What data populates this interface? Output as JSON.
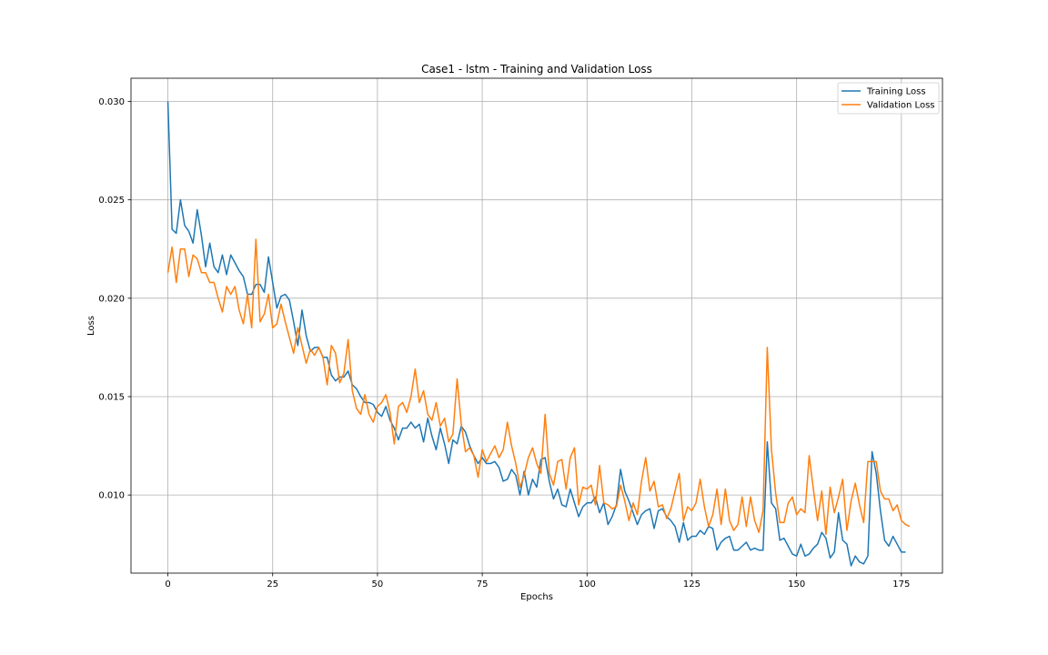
{
  "chart_data": {
    "type": "line",
    "title": "Case1 - lstm - Training and Validation Loss",
    "xlabel": "Epochs",
    "ylabel": "Loss",
    "xlim": [
      -8.8,
      184.8
    ],
    "ylim": [
      0.00603,
      0.03118
    ],
    "xticks": [
      0,
      25,
      50,
      75,
      100,
      125,
      150,
      175
    ],
    "xtick_labels": [
      "0",
      "25",
      "50",
      "75",
      "100",
      "125",
      "150",
      "175"
    ],
    "yticks": [
      0.01,
      0.015,
      0.02,
      0.025,
      0.03
    ],
    "ytick_labels": [
      "0.010",
      "0.015",
      "0.020",
      "0.025",
      "0.030"
    ],
    "grid": true,
    "legend_position": "top-right",
    "series": [
      {
        "name": "Training Loss",
        "color": "#1f77b4",
        "values": [
          0.03,
          0.0235,
          0.0233,
          0.025,
          0.0237,
          0.0234,
          0.0228,
          0.0245,
          0.0232,
          0.0216,
          0.0228,
          0.0216,
          0.0213,
          0.0222,
          0.0212,
          0.0222,
          0.0218,
          0.0214,
          0.0211,
          0.0202,
          0.0202,
          0.0207,
          0.0207,
          0.0203,
          0.0221,
          0.0208,
          0.0195,
          0.0201,
          0.0202,
          0.0199,
          0.0188,
          0.0176,
          0.0194,
          0.0181,
          0.0173,
          0.0175,
          0.0175,
          0.017,
          0.017,
          0.0161,
          0.0158,
          0.016,
          0.016,
          0.0163,
          0.0156,
          0.0154,
          0.015,
          0.0147,
          0.0147,
          0.0146,
          0.0142,
          0.014,
          0.0145,
          0.0138,
          0.0134,
          0.0128,
          0.0134,
          0.0134,
          0.0137,
          0.0134,
          0.0136,
          0.0127,
          0.0139,
          0.013,
          0.0123,
          0.0134,
          0.0126,
          0.0116,
          0.0128,
          0.0126,
          0.0135,
          0.0132,
          0.0125,
          0.012,
          0.0116,
          0.0119,
          0.0116,
          0.0116,
          0.0117,
          0.0114,
          0.0107,
          0.0108,
          0.0113,
          0.011,
          0.01,
          0.0112,
          0.01,
          0.0108,
          0.0104,
          0.0118,
          0.0119,
          0.0107,
          0.0098,
          0.0103,
          0.0095,
          0.0094,
          0.0103,
          0.0096,
          0.0089,
          0.0094,
          0.0096,
          0.0096,
          0.0099,
          0.0091,
          0.0096,
          0.0085,
          0.0089,
          0.0095,
          0.0113,
          0.0102,
          0.0097,
          0.0091,
          0.0085,
          0.009,
          0.0092,
          0.0093,
          0.0083,
          0.0092,
          0.0093,
          0.0089,
          0.0087,
          0.0084,
          0.0076,
          0.0086,
          0.0077,
          0.0079,
          0.0079,
          0.0082,
          0.008,
          0.0084,
          0.0083,
          0.0072,
          0.0076,
          0.0078,
          0.0079,
          0.0072,
          0.0072,
          0.0074,
          0.0076,
          0.0072,
          0.0073,
          0.0072,
          0.0072,
          0.0127,
          0.0096,
          0.0093,
          0.0077,
          0.0078,
          0.0074,
          0.007,
          0.0069,
          0.0075,
          0.0069,
          0.007,
          0.0073,
          0.0075,
          0.0081,
          0.0078,
          0.0068,
          0.0071,
          0.0091,
          0.0077,
          0.0075,
          0.0064,
          0.0069,
          0.0066,
          0.0065,
          0.0069,
          0.0122,
          0.0111,
          0.0092,
          0.0077,
          0.0074,
          0.0079,
          0.0075,
          0.0071,
          0.0071
        ]
      },
      {
        "name": "Validation Loss",
        "color": "#ff7f0e",
        "values": [
          0.0213,
          0.0226,
          0.0208,
          0.0225,
          0.0225,
          0.0211,
          0.0222,
          0.022,
          0.0213,
          0.0213,
          0.0208,
          0.0208,
          0.02,
          0.0193,
          0.0206,
          0.0202,
          0.0206,
          0.0194,
          0.0187,
          0.0202,
          0.0185,
          0.023,
          0.0188,
          0.0192,
          0.0202,
          0.0185,
          0.0187,
          0.0197,
          0.0188,
          0.018,
          0.0172,
          0.0185,
          0.0176,
          0.0167,
          0.0174,
          0.0171,
          0.0175,
          0.017,
          0.0156,
          0.0176,
          0.0172,
          0.0157,
          0.0162,
          0.0179,
          0.0153,
          0.0144,
          0.0141,
          0.0151,
          0.0141,
          0.0137,
          0.0145,
          0.0147,
          0.0151,
          0.0142,
          0.0126,
          0.0145,
          0.0147,
          0.0142,
          0.015,
          0.0164,
          0.0147,
          0.0153,
          0.0141,
          0.0138,
          0.0147,
          0.0135,
          0.0139,
          0.0127,
          0.0131,
          0.0159,
          0.0136,
          0.0122,
          0.0124,
          0.012,
          0.0109,
          0.0123,
          0.0117,
          0.0121,
          0.0125,
          0.0119,
          0.0123,
          0.0137,
          0.0125,
          0.0116,
          0.0104,
          0.011,
          0.0119,
          0.0124,
          0.0116,
          0.0111,
          0.0141,
          0.0111,
          0.0105,
          0.0117,
          0.0118,
          0.0103,
          0.0119,
          0.0124,
          0.0095,
          0.0104,
          0.0103,
          0.0105,
          0.0095,
          0.0115,
          0.0096,
          0.0095,
          0.0093,
          0.0094,
          0.0105,
          0.0097,
          0.0087,
          0.0096,
          0.009,
          0.0107,
          0.0119,
          0.0102,
          0.0107,
          0.0094,
          0.0095,
          0.0088,
          0.0093,
          0.0102,
          0.0111,
          0.0087,
          0.0094,
          0.0092,
          0.0096,
          0.0108,
          0.0094,
          0.0084,
          0.009,
          0.0103,
          0.0085,
          0.0103,
          0.0087,
          0.0082,
          0.0085,
          0.0099,
          0.0084,
          0.0099,
          0.0087,
          0.0081,
          0.0092,
          0.0175,
          0.0123,
          0.0101,
          0.0086,
          0.0086,
          0.0096,
          0.0099,
          0.009,
          0.0093,
          0.0091,
          0.012,
          0.0103,
          0.0087,
          0.0102,
          0.008,
          0.0104,
          0.0091,
          0.0099,
          0.0108,
          0.0082,
          0.0097,
          0.0106,
          0.0095,
          0.0086,
          0.0117,
          0.0117,
          0.0117,
          0.0102,
          0.0098,
          0.0098,
          0.0092,
          0.0095,
          0.0087,
          0.0085,
          0.0084
        ]
      }
    ]
  }
}
